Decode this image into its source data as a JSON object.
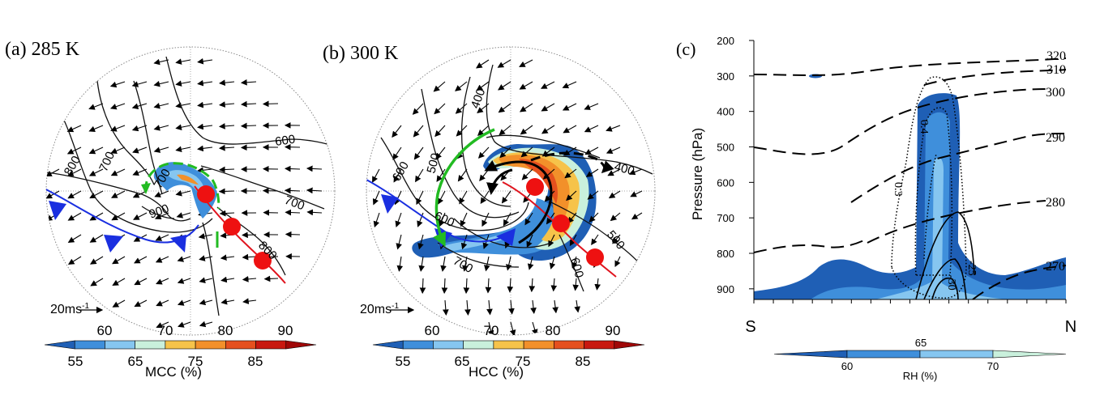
{
  "chart_data": [
    {
      "type": "map",
      "panel_label": "(a) 285 K",
      "contour_labels": [
        "600",
        "700",
        "800",
        "800",
        "700",
        "800",
        "900"
      ],
      "vector_scale_label": "20ms",
      "vector_scale_sup": "-1",
      "colorbar": {
        "label": "MCC (%)",
        "levels_top": [
          "60",
          "70",
          "80",
          "90"
        ],
        "levels_bottom": [
          "55",
          "65",
          "75",
          "85"
        ],
        "colors": [
          "#1f5fb5",
          "#3f8fdb",
          "#86c6f0",
          "#c9f0dc",
          "#f6c34a",
          "#f2902a",
          "#e5501e",
          "#c81810",
          "#a00808"
        ]
      }
    },
    {
      "type": "map",
      "panel_label": "(b) 300 K",
      "contour_labels": [
        "400",
        "500",
        "400",
        "600",
        "600",
        "700",
        "500",
        "600"
      ],
      "vector_scale_label": "20ms",
      "vector_scale_sup": "-1",
      "colorbar": {
        "label": "HCC (%)",
        "levels_top": [
          "60",
          "70",
          "80",
          "90"
        ],
        "levels_bottom": [
          "55",
          "65",
          "75",
          "85"
        ],
        "colors": [
          "#1f5fb5",
          "#3f8fdb",
          "#86c6f0",
          "#c9f0dc",
          "#f6c34a",
          "#f2902a",
          "#e5501e",
          "#c81810",
          "#a00808"
        ]
      }
    },
    {
      "type": "cross-section",
      "panel_label": "(c)",
      "ylabel": "Pressure (hPa)",
      "y_ticks": [
        "200",
        "300",
        "400",
        "500",
        "600",
        "700",
        "800",
        "900"
      ],
      "y_range": [
        200,
        930
      ],
      "x_left": "S",
      "x_right": "N",
      "theta_labels": [
        "320",
        "310",
        "300",
        "290",
        "280",
        "270"
      ],
      "inner_labels": [
        "0.4",
        "0.3",
        "-25",
        "-30"
      ],
      "colorbar": {
        "label": "RH (%)",
        "levels": [
          "60",
          "65",
          "70"
        ],
        "colors": [
          "#1f5fb5",
          "#3f8fdb",
          "#86c6f0",
          "#c9f0dc"
        ]
      }
    }
  ]
}
